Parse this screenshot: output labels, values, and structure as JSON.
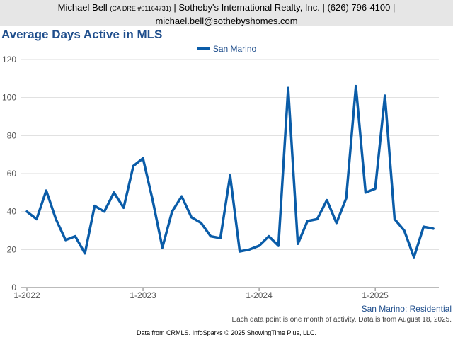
{
  "header": {
    "name": "Michael Bell",
    "dre": "(CA DRE #01164731)",
    "company_phone": "| Sotheby's International Realty, Inc. | (626) 796-4100 |",
    "email": "michael.bell@sothebyshomes.com"
  },
  "colors": {
    "series": "#0a5ca8",
    "title": "#1f4e8c",
    "header_bg": "#e6e6e6"
  },
  "chart_data": {
    "type": "line",
    "title": "Average Days Active in MLS",
    "ylim": [
      0,
      120
    ],
    "yticks": [
      0,
      20,
      40,
      60,
      80,
      100,
      120
    ],
    "xticks": [
      {
        "label": "1-2022",
        "index": 0
      },
      {
        "label": "1-2023",
        "index": 12
      },
      {
        "label": "1-2024",
        "index": 24
      },
      {
        "label": "1-2025",
        "index": 36
      }
    ],
    "grid": "horizontal",
    "legend": "top-center",
    "series": [
      {
        "name": "San Marino",
        "values": [
          40,
          36,
          51,
          36,
          25,
          27,
          18,
          43,
          40,
          50,
          42,
          64,
          68,
          46,
          21,
          40,
          48,
          37,
          34,
          27,
          26,
          59,
          19,
          20,
          22,
          27,
          22,
          105,
          23,
          35,
          36,
          46,
          34,
          47,
          106,
          50,
          52,
          101,
          36,
          30,
          16,
          32,
          31
        ]
      }
    ]
  },
  "footer": {
    "caption": "San Marino: Residential",
    "note": "Each data point is one month of activity. Data is from August 18, 2025.",
    "source": "Data from CRMLS. InfoSparks © 2025 ShowingTime Plus, LLC."
  }
}
